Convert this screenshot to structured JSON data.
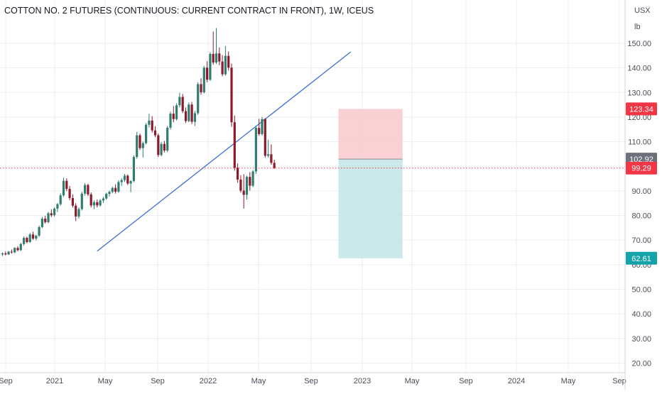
{
  "title": "COTTON NO. 2 FUTURES (CONTINUOUS: CURRENT CONTRACT IN FRONT), 1W, ICEUS",
  "units": {
    "currency": "USX",
    "unit": "lb"
  },
  "colors": {
    "up": "#2e7d6f",
    "down": "#8b1a2b",
    "trendline": "#3a6fd8",
    "stop_zone": "#f8c9cd",
    "target_zone": "#c5e6e8",
    "entry_tag": "#6d717c",
    "current_tag": "#f23645",
    "stop_tag": "#f23645",
    "target_tag": "#13a3a8",
    "grid": "#eceef2",
    "axis_text": "#4a4e5a"
  },
  "chart_data": {
    "type": "candlestick",
    "title": "COTTON NO. 2 FUTURES (CONTINUOUS: CURRENT CONTRACT IN FRONT), 1W, ICEUS",
    "ylim": [
      20,
      155
    ],
    "x_tick_labels": [
      "Sep",
      "2021",
      "May",
      "Sep",
      "2022",
      "May",
      "Sep",
      "2023",
      "May",
      "Sep",
      "2024",
      "May",
      "Sep"
    ],
    "y_tick_labels": [
      "150.00",
      "140.00",
      "130.00",
      "120.00",
      "110.00",
      "100.00",
      "90.00",
      "80.00",
      "70.00",
      "60.00",
      "50.00",
      "40.00",
      "30.00",
      "20.00"
    ],
    "grid": true,
    "candles": [
      [
        64.2,
        65.0,
        63.5,
        64.6
      ],
      [
        64.6,
        65.4,
        63.8,
        64.2
      ],
      [
        64.2,
        65.6,
        63.9,
        65.3
      ],
      [
        65.3,
        66.2,
        64.5,
        65.0
      ],
      [
        65.0,
        67.1,
        64.7,
        66.8
      ],
      [
        66.8,
        67.5,
        65.4,
        65.9
      ],
      [
        65.9,
        68.9,
        65.6,
        68.4
      ],
      [
        68.4,
        71.5,
        67.8,
        70.9
      ],
      [
        70.9,
        71.4,
        68.7,
        69.2
      ],
      [
        69.2,
        72.9,
        68.9,
        72.3
      ],
      [
        72.3,
        73.4,
        70.1,
        70.6
      ],
      [
        70.6,
        72.2,
        69.9,
        71.8
      ],
      [
        71.8,
        75.9,
        71.3,
        75.3
      ],
      [
        75.3,
        79.5,
        74.9,
        78.7
      ],
      [
        78.7,
        79.9,
        76.7,
        77.3
      ],
      [
        77.3,
        81.5,
        76.8,
        80.9
      ],
      [
        80.9,
        82.5,
        79.4,
        80.1
      ],
      [
        80.1,
        83.3,
        79.6,
        82.8
      ],
      [
        82.8,
        85.1,
        81.4,
        84.6
      ],
      [
        84.6,
        89.0,
        84.0,
        88.2
      ],
      [
        88.2,
        95.4,
        87.6,
        94.1
      ],
      [
        94.1,
        95.1,
        89.9,
        90.8
      ],
      [
        90.8,
        92.0,
        86.2,
        87.1
      ],
      [
        87.1,
        88.6,
        83.2,
        84.0
      ],
      [
        84.0,
        85.0,
        77.7,
        79.6
      ],
      [
        79.6,
        83.3,
        78.8,
        82.6
      ],
      [
        82.6,
        89.7,
        82.0,
        88.9
      ],
      [
        88.9,
        93.2,
        88.1,
        92.4
      ],
      [
        92.4,
        92.9,
        87.9,
        88.6
      ],
      [
        88.6,
        89.4,
        83.3,
        84.1
      ],
      [
        84.1,
        86.1,
        82.6,
        85.4
      ],
      [
        85.4,
        86.5,
        83.3,
        84.1
      ],
      [
        84.1,
        86.7,
        83.6,
        86.1
      ],
      [
        86.1,
        87.6,
        85.1,
        86.9
      ],
      [
        86.9,
        89.3,
        86.4,
        88.8
      ],
      [
        88.8,
        90.2,
        87.7,
        89.6
      ],
      [
        89.6,
        91.7,
        89.0,
        91.2
      ],
      [
        91.2,
        92.7,
        88.9,
        89.7
      ],
      [
        89.7,
        94.3,
        89.2,
        93.6
      ],
      [
        93.6,
        95.1,
        92.1,
        94.4
      ],
      [
        94.4,
        96.9,
        93.6,
        96.2
      ],
      [
        96.2,
        96.7,
        92.4,
        93.0
      ],
      [
        93.0,
        94.4,
        89.5,
        94.0
      ],
      [
        94.0,
        104.5,
        93.5,
        103.8
      ],
      [
        103.8,
        114.0,
        103.1,
        112.6
      ],
      [
        112.6,
        113.3,
        106.6,
        107.4
      ],
      [
        107.4,
        110.1,
        103.6,
        109.4
      ],
      [
        109.4,
        117.6,
        108.9,
        116.9
      ],
      [
        116.9,
        121.4,
        115.8,
        118.6
      ],
      [
        118.6,
        120.4,
        113.7,
        114.6
      ],
      [
        114.6,
        116.3,
        111.9,
        112.6
      ],
      [
        112.6,
        113.3,
        103.8,
        104.6
      ],
      [
        104.6,
        109.8,
        104.0,
        109.1
      ],
      [
        109.1,
        110.3,
        105.6,
        106.4
      ],
      [
        106.4,
        116.4,
        105.8,
        115.7
      ],
      [
        115.7,
        122.3,
        114.9,
        121.4
      ],
      [
        121.4,
        124.5,
        117.9,
        119.2
      ],
      [
        119.2,
        125.6,
        118.6,
        124.8
      ],
      [
        124.8,
        129.9,
        123.9,
        128.2
      ],
      [
        128.2,
        129.4,
        121.6,
        122.4
      ],
      [
        122.4,
        123.9,
        117.6,
        118.4
      ],
      [
        118.4,
        125.9,
        117.9,
        125.1
      ],
      [
        125.1,
        126.2,
        117.2,
        118.1
      ],
      [
        118.1,
        122.5,
        116.4,
        121.6
      ],
      [
        121.6,
        134.2,
        120.9,
        133.4
      ],
      [
        133.4,
        135.8,
        129.2,
        130.1
      ],
      [
        130.1,
        140.8,
        129.6,
        140.1
      ],
      [
        140.1,
        142.7,
        134.1,
        135.2
      ],
      [
        135.2,
        146.4,
        134.7,
        145.7
      ],
      [
        145.7,
        154.8,
        141.3,
        142.2
      ],
      [
        142.2,
        156.2,
        141.6,
        145.9
      ],
      [
        145.9,
        148.3,
        141.1,
        142.6
      ],
      [
        142.6,
        145.2,
        136.6,
        137.4
      ],
      [
        137.4,
        148.9,
        136.9,
        144.9
      ],
      [
        144.9,
        146.7,
        138.9,
        140.1
      ],
      [
        140.1,
        141.8,
        116.1,
        117.9
      ],
      [
        117.9,
        120.6,
        98.2,
        99.4
      ],
      [
        99.4,
        101.2,
        93.3,
        94.6
      ],
      [
        94.6,
        96.4,
        89.3,
        90.1
      ],
      [
        90.1,
        96.8,
        82.8,
        88.4
      ],
      [
        88.4,
        96.2,
        86.5,
        95.7
      ],
      [
        95.7,
        97.6,
        90.1,
        92.1
      ],
      [
        92.1,
        98.5,
        91.5,
        97.9
      ],
      [
        97.9,
        116.4,
        96.9,
        115.6
      ],
      [
        115.6,
        119.3,
        112.4,
        113.1
      ],
      [
        113.1,
        120.1,
        112.5,
        119.2
      ],
      [
        119.2,
        119.6,
        103.5,
        104.3
      ],
      [
        104.3,
        110.8,
        103.6,
        104.9
      ],
      [
        104.9,
        108.9,
        100.6,
        101.4
      ],
      [
        101.4,
        102.7,
        98.9,
        99.29
      ]
    ],
    "trendline": {
      "start": {
        "week": 31,
        "value": 65.5
      },
      "end": {
        "week": 114,
        "value": 146.5
      }
    },
    "position": {
      "type": "short",
      "entry": 102.92,
      "stop": 123.34,
      "target": 62.61,
      "start_week": 110,
      "end_week": 131
    },
    "current_price": 99.29
  },
  "price_tags": {
    "stop": "123.34",
    "entry": "102.92",
    "current": "99.29",
    "target": "62.61"
  }
}
